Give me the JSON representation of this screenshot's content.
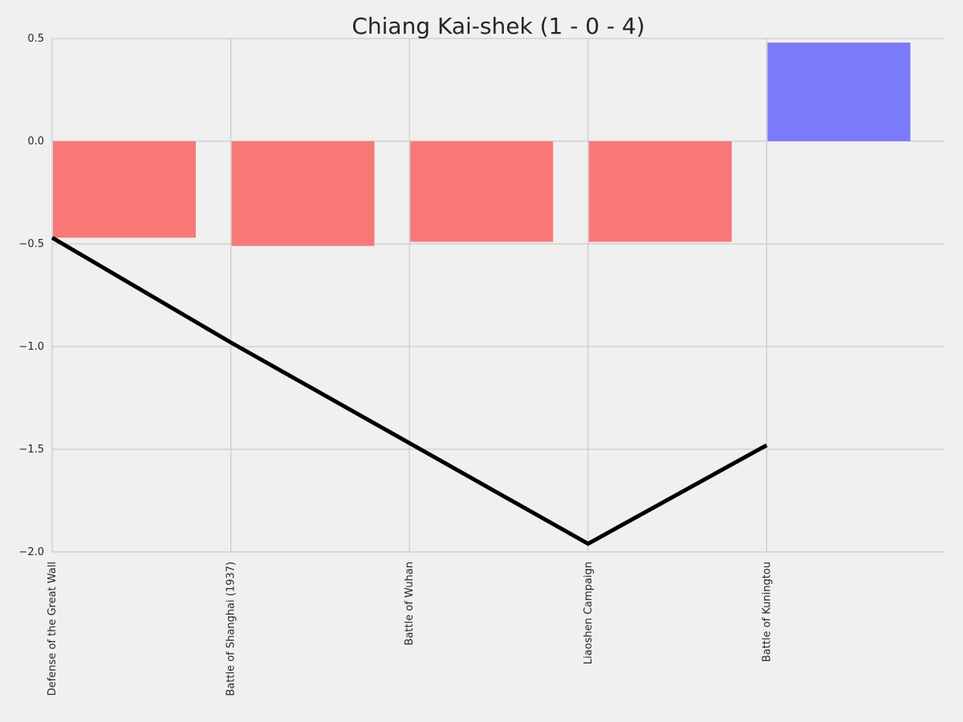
{
  "chart_data": {
    "type": "bar",
    "title": "Chiang Kai-shek (1 - 0 - 4)",
    "xlabel": "",
    "ylabel": "",
    "categories": [
      "Defense of the Great Wall",
      "Battle of Shanghai (1937)",
      "Battle of Wuhan",
      "Liaoshen Campaign",
      "Battle of Kuningtou"
    ],
    "series": [
      {
        "type": "bar",
        "values": [
          -0.47,
          -0.51,
          -0.49,
          -0.49,
          0.48
        ],
        "colors": [
          "#f87878",
          "#f87878",
          "#f87878",
          "#f87878",
          "#7b7bf9"
        ]
      },
      {
        "type": "line",
        "values": [
          -0.47,
          -0.98,
          -1.47,
          -1.96,
          -1.48
        ],
        "color": "#000000"
      }
    ],
    "yticks": [
      0.5,
      0.0,
      -0.5,
      -1.0,
      -1.5,
      -2.0
    ],
    "ytick_labels": [
      "0.5",
      "0.0",
      "−0.5",
      "−1.0",
      "−1.5",
      "−2.0"
    ],
    "ylim": [
      -2.0,
      0.5
    ],
    "grid": true,
    "legend": "none",
    "colors": {
      "background": "#f0f0f0",
      "grid": "#cbcbcb",
      "loss": "#f87878",
      "win": "#7b7bf9",
      "line": "#000000"
    }
  }
}
